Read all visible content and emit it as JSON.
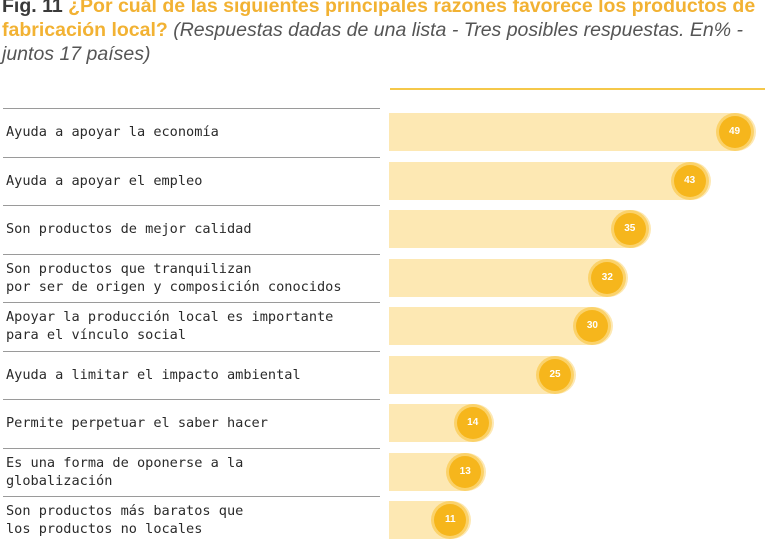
{
  "figure": {
    "number": "Fig. 11",
    "question": "¿Por cuál de las siguientes principales razones favorece los productos de fabricación local?",
    "note": "(Respuestas dadas de una lista - Tres posibles respuestas. En% - juntos 17 países)"
  },
  "colors": {
    "bar": "#fde8b3",
    "bubble": "#f6b61c",
    "accent": "#f2b233"
  },
  "chart_data": {
    "type": "bar",
    "orientation": "horizontal",
    "categories": [
      "Ayuda a apoyar la economía",
      "Ayuda a apoyar el empleo",
      "Son productos de mejor calidad",
      "Son productos que  tranquilizan\npor ser de origen y composición conocidos",
      "Apoyar la producción local es importante\npara el vínculo social",
      "Ayuda a limitar el impacto ambiental",
      "Permite perpetuar el saber hacer",
      "Es una forma de oponerse a la\nglobalización",
      "Son productos más baratos que\nlos productos no locales"
    ],
    "values": [
      49,
      43,
      35,
      32,
      30,
      25,
      14,
      13,
      11
    ],
    "xlim": [
      0,
      50
    ],
    "title": "",
    "xlabel": "",
    "ylabel": ""
  }
}
